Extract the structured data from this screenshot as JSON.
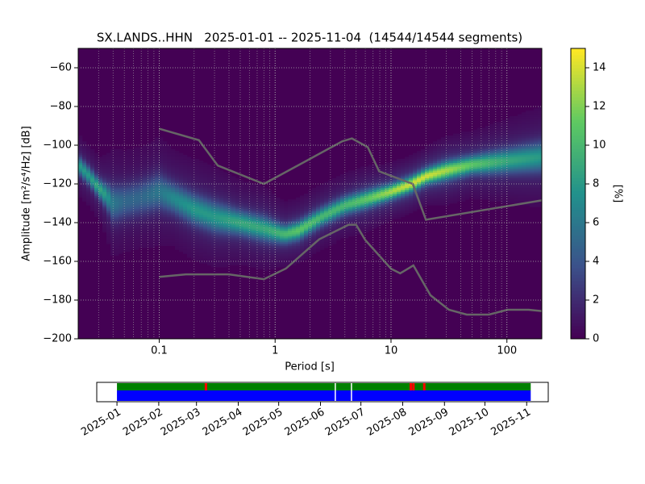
{
  "chart_data": {
    "type": "ppsd",
    "title": "SX.LANDS..HHN   2025-01-01 -- 2025-11-04  (14544/14544 segments)",
    "xlabel": "Period [s]",
    "ylabel": "Amplitude [m²/s⁴/Hz] [dB]",
    "xscale": "log",
    "xlim": [
      0.02,
      200
    ],
    "xticks": [
      0.1,
      1,
      10,
      100
    ],
    "ylim": [
      -200,
      -50
    ],
    "yticks": [
      {
        "value": -200,
        "label": "−200"
      },
      {
        "value": -180,
        "label": "−180"
      },
      {
        "value": -160,
        "label": "−160"
      },
      {
        "value": -140,
        "label": "−140"
      },
      {
        "value": -120,
        "label": "−120"
      },
      {
        "value": -100,
        "label": "−100"
      },
      {
        "value": -80,
        "label": "−80"
      },
      {
        "value": -60,
        "label": "−60"
      }
    ],
    "grid": true,
    "background": "#440154",
    "mode": {
      "x": [
        0.02,
        0.025,
        0.03,
        0.035,
        0.04,
        0.05,
        0.07,
        0.1,
        0.13,
        0.2,
        0.3,
        0.5,
        0.8,
        1.2,
        1.6,
        2.5,
        4,
        6,
        10,
        15,
        20,
        30,
        50,
        100,
        200
      ],
      "y": [
        -110,
        -116,
        -122,
        -126,
        -130,
        -129,
        -127,
        -124,
        -127,
        -133,
        -137,
        -140,
        -143,
        -146,
        -144,
        -137,
        -131,
        -128,
        -124,
        -120,
        -116,
        -113,
        -110,
        -108,
        -106
      ],
      "peak": [
        8,
        8,
        9,
        8,
        6,
        5,
        5,
        6,
        7,
        8,
        8,
        9,
        9,
        10,
        11,
        10,
        10,
        11,
        13,
        14,
        14,
        13,
        11,
        9,
        8
      ],
      "spread": [
        3,
        3,
        3,
        4,
        6,
        6,
        6,
        6,
        5,
        5,
        5,
        4,
        4,
        3,
        3,
        3,
        3,
        3,
        2.5,
        2.5,
        2.5,
        3,
        3,
        4,
        5
      ]
    },
    "noise_models": [
      {
        "color": "#666666",
        "x": [
          0.1,
          0.22,
          0.32,
          0.8,
          3.8,
          4.6,
          6.3,
          7.9,
          15.4,
          20,
          200
        ],
        "y": [
          -91.5,
          -97.4,
          -110.5,
          -120,
          -98,
          -96.5,
          -101,
          -113.5,
          -120,
          -138.5,
          -128.5
        ]
      },
      {
        "color": "#666666",
        "x": [
          0.1,
          0.17,
          0.4,
          0.8,
          1.24,
          2.4,
          4.3,
          5,
          6,
          10,
          12,
          15.6,
          21.9,
          31.6,
          45,
          70,
          101,
          154,
          200
        ],
        "y": [
          -168,
          -166.7,
          -166.7,
          -169.2,
          -163.7,
          -148.6,
          -141.1,
          -141.1,
          -149,
          -163.8,
          -166.2,
          -162.1,
          -177.5,
          -185,
          -187.5,
          -187.5,
          -185,
          -185,
          -185.7
        ]
      }
    ],
    "colorbar": {
      "label": "[%]",
      "lim": [
        0,
        15
      ],
      "ticks": [
        0,
        2,
        4,
        6,
        8,
        10,
        12,
        14
      ]
    },
    "timeline": {
      "xlim": [
        "2024-12-17",
        "2025-11-17"
      ],
      "xticks": [
        {
          "value": "2025-01-01",
          "label": "2025-01"
        },
        {
          "value": "2025-02-01",
          "label": "2025-02"
        },
        {
          "value": "2025-03-01",
          "label": "2025-03"
        },
        {
          "value": "2025-04-01",
          "label": "2025-04"
        },
        {
          "value": "2025-05-01",
          "label": "2025-05"
        },
        {
          "value": "2025-06-01",
          "label": "2025-06"
        },
        {
          "value": "2025-07-01",
          "label": "2025-07"
        },
        {
          "value": "2025-08-01",
          "label": "2025-08"
        },
        {
          "value": "2025-09-01",
          "label": "2025-09"
        },
        {
          "value": "2025-10-01",
          "label": "2025-10"
        },
        {
          "value": "2025-11-01",
          "label": "2025-11"
        }
      ],
      "span": [
        "2025-01-01",
        "2025-11-04"
      ],
      "upper_color": "#008000",
      "lower_color": "#0000ff",
      "upper_gaps": [
        "2025-03-08",
        "2025-08-07",
        "2025-08-09",
        "2025-08-17"
      ],
      "upper_gap_color": "#ff0000",
      "lower_gaps": [
        "2025-06-12",
        "2025-06-24"
      ]
    }
  }
}
